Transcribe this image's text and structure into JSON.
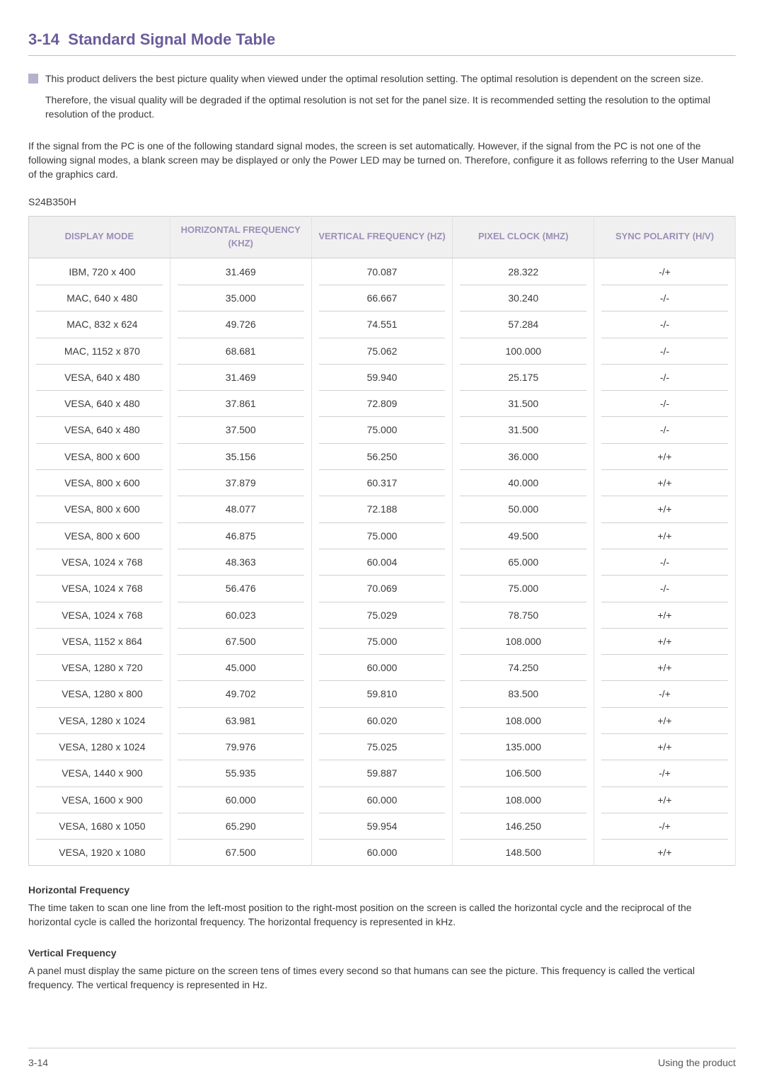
{
  "section_number": "3-14",
  "section_title": "Standard Signal Mode Table",
  "note_p1": "This product delivers the best picture quality when viewed under the optimal resolution setting. The optimal resolution is dependent on the screen size.",
  "note_p2": "Therefore, the visual quality will be degraded if the optimal resolution is not set for the panel size. It is recommended setting the resolution to the optimal resolution of the product.",
  "body_para": "If the signal from the PC is one of the following standard signal modes, the screen is set automatically. However, if the signal from the PC is not one of the following signal modes, a blank screen may be displayed or only the Power LED may be turned on. Therefore, configure it as follows referring to the User Manual of the graphics card.",
  "model": "S24B350H",
  "columns": [
    "DISPLAY MODE",
    "HORIZONTAL FREQUENCY (KHZ)",
    "VERTICAL FREQUENCY (HZ)",
    "PIXEL CLOCK (MHZ)",
    "SYNC POLARITY (H/V)"
  ],
  "rows": [
    [
      "IBM, 720 x 400",
      "31.469",
      "70.087",
      "28.322",
      "-/+"
    ],
    [
      "MAC, 640 x 480",
      "35.000",
      "66.667",
      "30.240",
      "-/-"
    ],
    [
      "MAC, 832 x 624",
      "49.726",
      "74.551",
      "57.284",
      "-/-"
    ],
    [
      "MAC, 1152 x 870",
      "68.681",
      "75.062",
      "100.000",
      "-/-"
    ],
    [
      "VESA, 640 x 480",
      "31.469",
      "59.940",
      "25.175",
      "-/-"
    ],
    [
      "VESA, 640 x 480",
      "37.861",
      "72.809",
      "31.500",
      "-/-"
    ],
    [
      "VESA, 640 x 480",
      "37.500",
      "75.000",
      "31.500",
      "-/-"
    ],
    [
      "VESA, 800 x 600",
      "35.156",
      "56.250",
      "36.000",
      "+/+"
    ],
    [
      "VESA, 800 x 600",
      "37.879",
      "60.317",
      "40.000",
      "+/+"
    ],
    [
      "VESA, 800 x 600",
      "48.077",
      "72.188",
      "50.000",
      "+/+"
    ],
    [
      "VESA, 800 x 600",
      "46.875",
      "75.000",
      "49.500",
      "+/+"
    ],
    [
      "VESA, 1024 x 768",
      "48.363",
      "60.004",
      "65.000",
      "-/-"
    ],
    [
      "VESA, 1024 x 768",
      "56.476",
      "70.069",
      "75.000",
      "-/-"
    ],
    [
      "VESA, 1024 x 768",
      "60.023",
      "75.029",
      "78.750",
      "+/+"
    ],
    [
      "VESA, 1152 x 864",
      "67.500",
      "75.000",
      "108.000",
      "+/+"
    ],
    [
      "VESA, 1280 x 720",
      "45.000",
      "60.000",
      "74.250",
      "+/+"
    ],
    [
      "VESA, 1280 x 800",
      "49.702",
      "59.810",
      "83.500",
      "-/+"
    ],
    [
      "VESA, 1280 x 1024",
      "63.981",
      "60.020",
      "108.000",
      "+/+"
    ],
    [
      "VESA, 1280 x 1024",
      "79.976",
      "75.025",
      "135.000",
      "+/+"
    ],
    [
      "VESA, 1440 x 900",
      "55.935",
      "59.887",
      "106.500",
      "-/+"
    ],
    [
      "VESA, 1600 x 900",
      "60.000",
      "60.000",
      "108.000",
      "+/+"
    ],
    [
      "VESA, 1680 x 1050",
      "65.290",
      "59.954",
      "146.250",
      "-/+"
    ],
    [
      "VESA, 1920 x 1080",
      "67.500",
      "60.000",
      "148.500",
      "+/+"
    ]
  ],
  "def1_title": "Horizontal Frequency",
  "def1_body": "The time taken to scan one line from the left-most position to the right-most position on the screen is called the horizontal cycle and the reciprocal of the horizontal cycle is called the horizontal frequency. The horizontal frequency is represented in kHz.",
  "def2_title": "Vertical Frequency",
  "def2_body": "A panel must display the same picture on the screen tens of times every second so that humans can see the picture. This frequency is called the vertical frequency. The vertical frequency is represented in Hz.",
  "footer_left": "3-14",
  "footer_right": "Using the product",
  "colors": {
    "heading": "#6b5b9a",
    "th_text": "#9a8fb8",
    "th_bg": "#f1f0f0",
    "border": "#cfcfcf",
    "row_divider": "#d0d0d0",
    "body_text": "#3a3a3a",
    "note_bullet": "#b8b0cc"
  },
  "col_widths_pct": [
    20,
    20,
    20,
    20,
    20
  ]
}
